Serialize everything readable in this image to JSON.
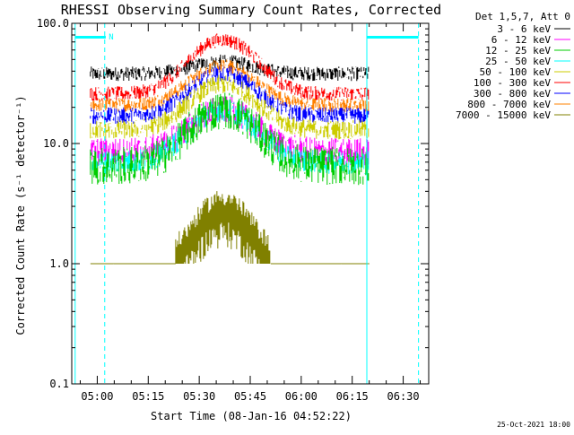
{
  "chart_data": {
    "type": "line",
    "title": "RHESSI Observing Summary Count Rates, Corrected",
    "ylabel": "Corrected Count Rate (s⁻¹ detector⁻¹)",
    "xlabel": "Start Time (08-Jan-16 04:52:22)",
    "footer": "25-Oct-2021 18:00",
    "legend_title": "Det 1,5,7, Att 0",
    "y_scale": "log",
    "ylim": [
      0.1,
      100
    ],
    "y_ticks": [
      "100.0",
      "10.0",
      "1.0",
      "0.1"
    ],
    "x_range_minutes": [
      -7.5,
      97.5
    ],
    "x_ticks": [
      {
        "label": "05:00",
        "minute": 0
      },
      {
        "label": "05:15",
        "minute": 15
      },
      {
        "label": "05:30",
        "minute": 30
      },
      {
        "label": "05:45",
        "minute": 45
      },
      {
        "label": "06:00",
        "minute": 60
      },
      {
        "label": "06:15",
        "minute": 75
      },
      {
        "label": "06:30",
        "minute": 90
      }
    ],
    "flag_label": "N",
    "markers_minutes": {
      "solid": [
        -6.5,
        79.3
      ],
      "dashed": [
        2.2,
        94.5
      ]
    },
    "night_bars": [
      {
        "start": -6.5,
        "end": 2.5
      },
      {
        "start": 79.3,
        "end": 94.5
      }
    ],
    "data_window_minutes": [
      -2.0,
      80.0
    ],
    "series": [
      {
        "name": "3 - 6 keV",
        "color": "#000000",
        "base": 38,
        "peak": 48,
        "noise": 0.06
      },
      {
        "name": "6 - 12 keV",
        "color": "#ff00ff",
        "base": 8.5,
        "peak": 19,
        "noise": 0.12
      },
      {
        "name": "12 - 25 keV",
        "color": "#00cc00",
        "base": 6.5,
        "peak": 19,
        "noise": 0.16
      },
      {
        "name": "25 - 50 keV",
        "color": "#00ffff",
        "base": 7,
        "peak": 19,
        "noise": 0.1
      },
      {
        "name": "50 - 100 keV",
        "color": "#cccc00",
        "base": 13,
        "peak": 31,
        "noise": 0.08
      },
      {
        "name": "100 - 300 keV",
        "color": "#ff0000",
        "base": 26,
        "peak": 73,
        "noise": 0.06
      },
      {
        "name": "300 - 800 keV",
        "color": "#0000ff",
        "base": 17,
        "peak": 38,
        "noise": 0.07
      },
      {
        "name": "800 - 7000 keV",
        "color": "#ff8000",
        "base": 21,
        "peak": 44,
        "noise": 0.06
      },
      {
        "name": "7000 - 15000 keV",
        "color": "#808000",
        "base": 1.0,
        "peak": 3.0,
        "noise": 0.0
      }
    ],
    "peak_minute": 37,
    "peak_width_minutes": 12,
    "colors": {
      "axis": "#000000",
      "marker": "#00ffff",
      "background": "#ffffff"
    }
  }
}
